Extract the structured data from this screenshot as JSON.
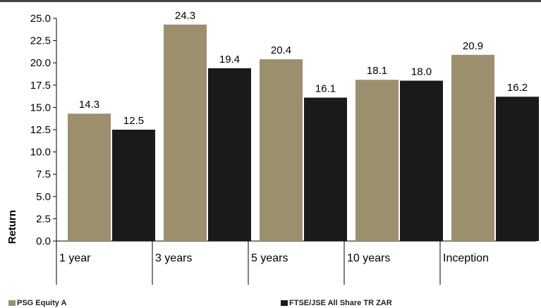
{
  "chart_data": {
    "type": "bar",
    "categories": [
      "1 year",
      "3 years",
      "5 years",
      "10 years",
      "Inception"
    ],
    "series": [
      {
        "name": "PSG Equity A",
        "values": [
          14.3,
          24.3,
          20.4,
          18.1,
          20.9
        ],
        "color": "#9c8f6e"
      },
      {
        "name": "FTSE/JSE All Share TR ZAR",
        "values": [
          12.5,
          19.4,
          16.1,
          18.0,
          16.2
        ],
        "color": "#1a1a1a"
      }
    ],
    "data_labels": [
      [
        "14.3",
        "24.3",
        "20.4",
        "18.1",
        "20.9"
      ],
      [
        "12.5",
        "19.4",
        "16.1",
        "18.0",
        "16.2"
      ]
    ],
    "yticks": [
      "0.0",
      "2.5",
      "5.0",
      "7.5",
      "10.0",
      "12.5",
      "15.0",
      "17.5",
      "20.0",
      "22.5",
      "25.0"
    ],
    "ylim": [
      0,
      25
    ],
    "ylabel": "Return",
    "xlabel": "",
    "title": "",
    "grid": false,
    "legend_position": "bottom"
  }
}
